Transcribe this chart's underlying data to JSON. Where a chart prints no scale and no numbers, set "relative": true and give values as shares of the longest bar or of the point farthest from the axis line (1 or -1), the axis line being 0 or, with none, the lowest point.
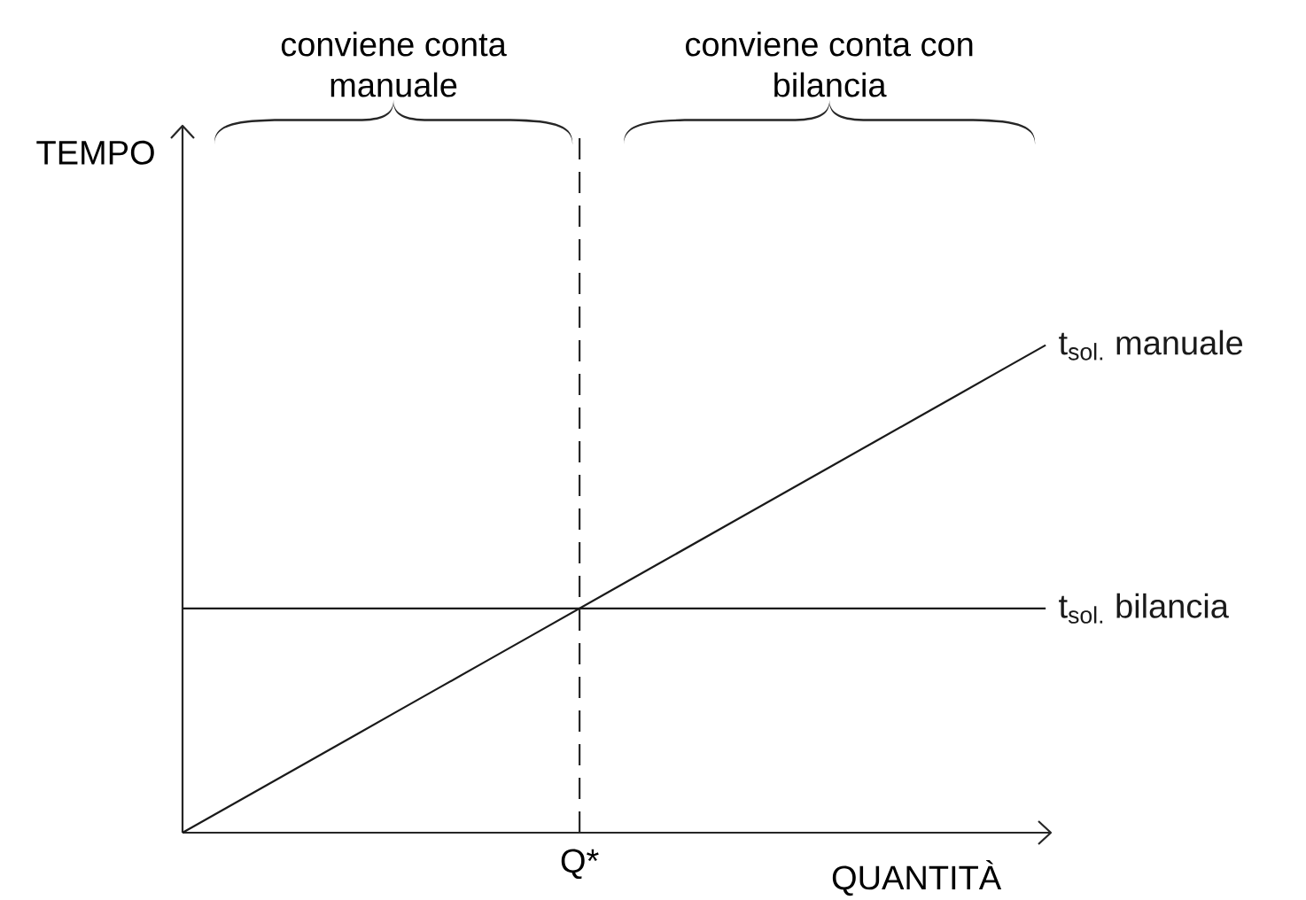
{
  "chart_data": {
    "type": "line",
    "relative": true,
    "categories": [
      null,
      null,
      null,
      null,
      null,
      null,
      null,
      null,
      null,
      null,
      null,
      null,
      null,
      null,
      null,
      null,
      null,
      null,
      null,
      null,
      null
    ],
    "series": [
      {
        "name": "t$_{sol.}$ manuale",
        "color": "#1a1a1a",
        "values": [
          0,
          0.05,
          0.1,
          0.15,
          0.2,
          0.25,
          0.3,
          0.35,
          0.4,
          0.45,
          0.5,
          0.55,
          0.6,
          0.65,
          0.7,
          0.75,
          0.8,
          0.85,
          0.9,
          0.95,
          1
        ]
      },
      {
        "name": "t$_{sol.}$ bilancia",
        "color": "#1a1a1a",
        "values": [
          0.46,
          0.46,
          0.46,
          0.46,
          0.46,
          0.46,
          0.46,
          0.46,
          0.46,
          0.46,
          0.46,
          0.46,
          0.46,
          0.46,
          0.46,
          0.46,
          0.46,
          0.46,
          0.46,
          0.46,
          0.46
        ]
      }
    ],
    "xlabel": "QUANTITÀ",
    "annotations": [
      "conviene conta manuale",
      "conviene conta con bilancia",
      "Q*",
      "TEMPO"
    ]
  }
}
